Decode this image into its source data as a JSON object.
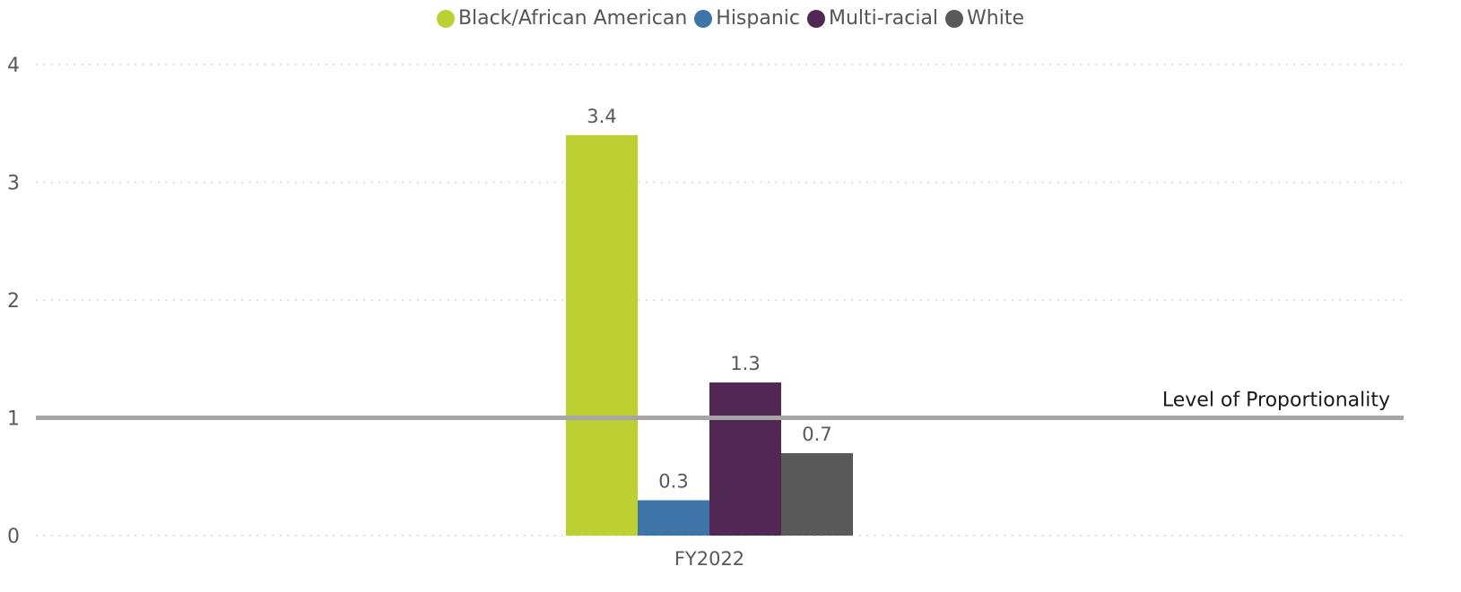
{
  "chart_data": {
    "type": "bar",
    "categories": [
      "FY2022"
    ],
    "series": [
      {
        "name": "Black/African American",
        "values": [
          3.4
        ],
        "color": "#bdd032"
      },
      {
        "name": "Hispanic",
        "values": [
          0.3
        ],
        "color": "#3d75a8"
      },
      {
        "name": "Multi-racial",
        "values": [
          1.3
        ],
        "color": "#502853"
      },
      {
        "name": "White",
        "values": [
          0.7
        ],
        "color": "#595959"
      }
    ],
    "data_labels": [
      "3.4",
      "0.3",
      "1.3",
      "0.7"
    ],
    "yticks": [
      "0",
      "1",
      "2",
      "3",
      "4"
    ],
    "ylim": [
      0,
      4
    ],
    "grid": true,
    "legend_position": "top-center",
    "reference_line": {
      "value": 1,
      "label": "Level of Proportionality",
      "color": "#a6a6a6"
    }
  }
}
